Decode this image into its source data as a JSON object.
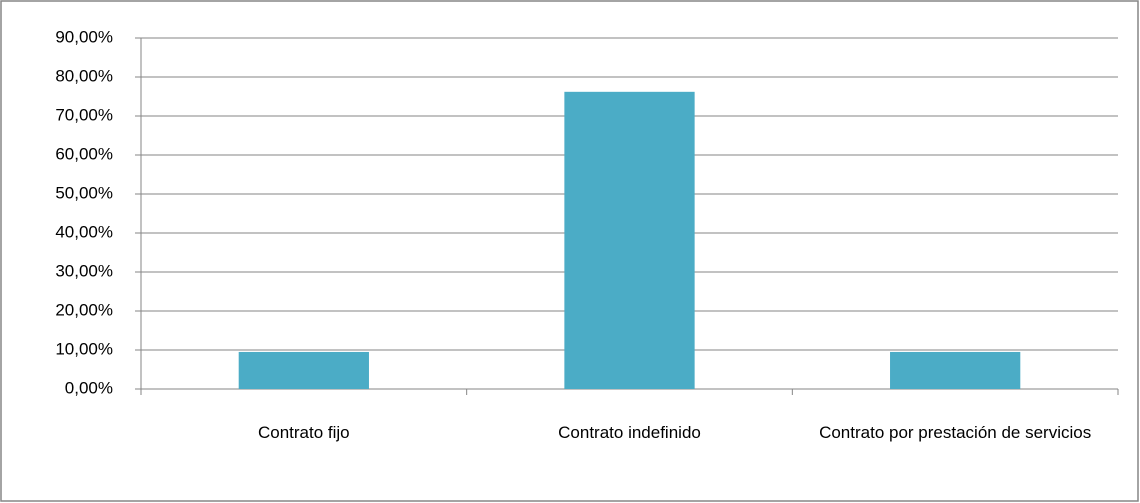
{
  "chart_data": {
    "type": "bar",
    "categories": [
      "Contrato fijo",
      "Contrato indefinido",
      "Contrato por prestación de servicios"
    ],
    "values": [
      9.5,
      76.2,
      9.5
    ],
    "color": "#4bacc6",
    "ylim": [
      0,
      90
    ],
    "yticks": [
      {
        "value": 0,
        "label": "0,00%"
      },
      {
        "value": 10,
        "label": "10,00%"
      },
      {
        "value": 20,
        "label": "20,00%"
      },
      {
        "value": 30,
        "label": "30,00%"
      },
      {
        "value": 40,
        "label": "40,00%"
      },
      {
        "value": 50,
        "label": "50,00%"
      },
      {
        "value": 60,
        "label": "60,00%"
      },
      {
        "value": 70,
        "label": "70,00%"
      },
      {
        "value": 80,
        "label": "80,00%"
      },
      {
        "value": 90,
        "label": "90,00%"
      }
    ],
    "grid": true
  }
}
